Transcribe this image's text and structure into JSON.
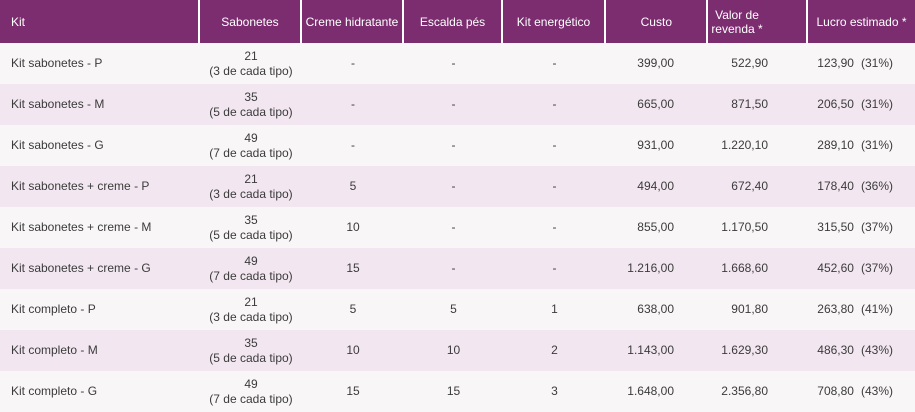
{
  "colors": {
    "header_bg": "#7B2D6F",
    "header_text": "#FFFFFF",
    "row_odd_bg": "#F9F6F8",
    "row_even_bg": "#F2E7F0",
    "body_text": "#3B3B3B"
  },
  "table": {
    "columns": [
      {
        "label": "Kit"
      },
      {
        "label": "Sabonetes"
      },
      {
        "label": "Creme hidratante"
      },
      {
        "label": "Escalda pés"
      },
      {
        "label": "Kit energético"
      },
      {
        "label": "Custo"
      },
      {
        "label": "Valor de revenda *"
      },
      {
        "label": "Lucro estimado *"
      }
    ],
    "rows": [
      {
        "kit": "Kit sabonetes - P",
        "sabonetes_qty": "21",
        "sabonetes_note": "(3 de cada tipo)",
        "creme": "-",
        "escalda": "-",
        "energetico": "-",
        "custo": "399,00",
        "revenda": "522,90",
        "lucro": "123,90",
        "lucro_pct": "(31%)"
      },
      {
        "kit": "Kit sabonetes - M",
        "sabonetes_qty": "35",
        "sabonetes_note": "(5 de cada tipo)",
        "creme": "-",
        "escalda": "-",
        "energetico": "-",
        "custo": "665,00",
        "revenda": "871,50",
        "lucro": "206,50",
        "lucro_pct": "(31%)"
      },
      {
        "kit": "Kit sabonetes - G",
        "sabonetes_qty": "49",
        "sabonetes_note": "(7 de cada tipo)",
        "creme": "-",
        "escalda": "-",
        "energetico": "-",
        "custo": "931,00",
        "revenda": "1.220,10",
        "lucro": "289,10",
        "lucro_pct": "(31%)"
      },
      {
        "kit": "Kit sabonetes + creme - P",
        "sabonetes_qty": "21",
        "sabonetes_note": "(3 de cada tipo)",
        "creme": "5",
        "escalda": "-",
        "energetico": "-",
        "custo": "494,00",
        "revenda": "672,40",
        "lucro": "178,40",
        "lucro_pct": "(36%)"
      },
      {
        "kit": "Kit sabonetes + creme - M",
        "sabonetes_qty": "35",
        "sabonetes_note": "(5 de cada tipo)",
        "creme": "10",
        "escalda": "-",
        "energetico": "-",
        "custo": "855,00",
        "revenda": "1.170,50",
        "lucro": "315,50",
        "lucro_pct": "(37%)"
      },
      {
        "kit": "Kit sabonetes + creme - G",
        "sabonetes_qty": "49",
        "sabonetes_note": "(7 de cada tipo)",
        "creme": "15",
        "escalda": "-",
        "energetico": "-",
        "custo": "1.216,00",
        "revenda": "1.668,60",
        "lucro": "452,60",
        "lucro_pct": "(37%)"
      },
      {
        "kit": "Kit completo - P",
        "sabonetes_qty": "21",
        "sabonetes_note": "(3 de cada tipo)",
        "creme": "5",
        "escalda": "5",
        "energetico": "1",
        "custo": "638,00",
        "revenda": "901,80",
        "lucro": "263,80",
        "lucro_pct": "(41%)"
      },
      {
        "kit": "Kit completo - M",
        "sabonetes_qty": "35",
        "sabonetes_note": "(5 de cada tipo)",
        "creme": "10",
        "escalda": "10",
        "energetico": "2",
        "custo": "1.143,00",
        "revenda": "1.629,30",
        "lucro": "486,30",
        "lucro_pct": "(43%)"
      },
      {
        "kit": "Kit completo - G",
        "sabonetes_qty": "49",
        "sabonetes_note": "(7 de cada tipo)",
        "creme": "15",
        "escalda": "15",
        "energetico": "3",
        "custo": "1.648,00",
        "revenda": "2.356,80",
        "lucro": "708,80",
        "lucro_pct": "(43%)"
      }
    ]
  },
  "chart_data": {
    "type": "table",
    "columns": [
      "Kit",
      "Sabonetes",
      "Creme hidratante",
      "Escalda pés",
      "Kit energético",
      "Custo",
      "Valor de revenda *",
      "Lucro estimado *"
    ],
    "rows": [
      [
        "Kit sabonetes - P",
        "21 (3 de cada tipo)",
        "-",
        "-",
        "-",
        "399,00",
        "522,90",
        "123,90 (31%)"
      ],
      [
        "Kit sabonetes - M",
        "35 (5 de cada tipo)",
        "-",
        "-",
        "-",
        "665,00",
        "871,50",
        "206,50 (31%)"
      ],
      [
        "Kit sabonetes - G",
        "49 (7 de cada tipo)",
        "-",
        "-",
        "-",
        "931,00",
        "1.220,10",
        "289,10 (31%)"
      ],
      [
        "Kit sabonetes + creme - P",
        "21 (3 de cada tipo)",
        "5",
        "-",
        "-",
        "494,00",
        "672,40",
        "178,40 (36%)"
      ],
      [
        "Kit sabonetes + creme - M",
        "35 (5 de cada tipo)",
        "10",
        "-",
        "-",
        "855,00",
        "1.170,50",
        "315,50 (37%)"
      ],
      [
        "Kit sabonetes + creme - G",
        "49 (7 de cada tipo)",
        "15",
        "-",
        "-",
        "1.216,00",
        "1.668,60",
        "452,60 (37%)"
      ],
      [
        "Kit completo - P",
        "21 (3 de cada tipo)",
        "5",
        "5",
        "1",
        "638,00",
        "901,80",
        "263,80 (41%)"
      ],
      [
        "Kit completo - M",
        "35 (5 de cada tipo)",
        "10",
        "10",
        "2",
        "1.143,00",
        "1.629,30",
        "486,30 (43%)"
      ],
      [
        "Kit completo - G",
        "49 (7 de cada tipo)",
        "15",
        "15",
        "3",
        "1.648,00",
        "2.356,80",
        "708,80 (43%)"
      ]
    ]
  }
}
